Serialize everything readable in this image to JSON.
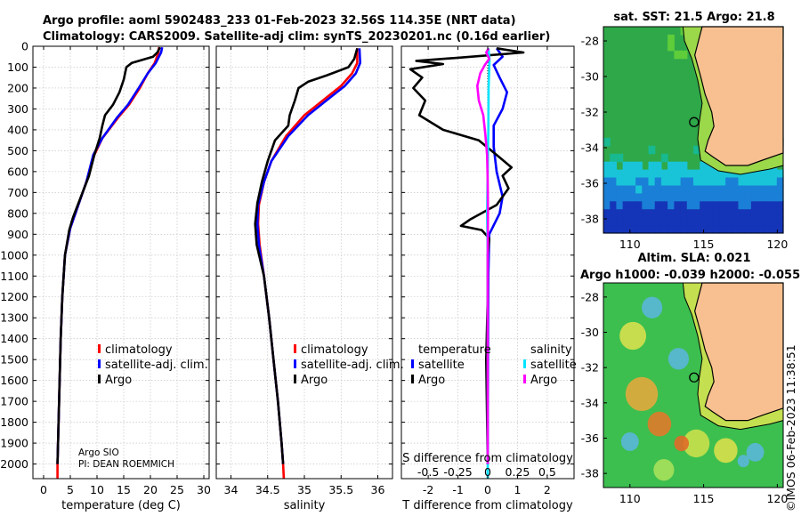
{
  "header": {
    "title_line1": "Argo profile: aoml 5902483_233 01-Feb-2023 32.56S 114.35E (NRT data)",
    "title_line2": "Climatology: CARS2009. Satellite-adj clim: synTS_20230201.nc (0.16d earlier)"
  },
  "colors": {
    "climatology": "#ff0000",
    "satellite_adj": "#0000ff",
    "argo": "#000000",
    "sal_satellite": "#00e5ff",
    "sal_argo": "#ff00ff",
    "land": "#f8c090",
    "coast": "#000000"
  },
  "chart_data": [
    {
      "type": "line",
      "name": "temperature",
      "xlabel": "temperature (deg C)",
      "xlim": [
        -2,
        31
      ],
      "xticks": [
        0,
        5,
        10,
        15,
        20,
        25,
        30
      ],
      "ylim": [
        2070,
        0
      ],
      "yticks": [
        0,
        100,
        200,
        300,
        400,
        500,
        600,
        700,
        800,
        900,
        1000,
        1100,
        1200,
        1300,
        1400,
        1500,
        1600,
        1700,
        1800,
        1900,
        2000
      ],
      "legend": [
        "climatology",
        "satellite-adj. clim.",
        "Argo"
      ],
      "annotation": [
        "Argo SIO",
        "PI: DEAN ROEMMICH"
      ],
      "series": [
        {
          "name": "climatology",
          "color": "#ff0000",
          "points": [
            [
              21.6,
              5
            ],
            [
              21.5,
              30
            ],
            [
              20.8,
              80
            ],
            [
              19.5,
              130
            ],
            [
              18,
              200
            ],
            [
              16,
              280
            ],
            [
              14,
              340
            ],
            [
              11,
              440
            ],
            [
              9.5,
              520
            ],
            [
              8,
              650
            ],
            [
              6.5,
              760
            ],
            [
              5,
              870
            ],
            [
              4,
              1000
            ],
            [
              3.5,
              1200
            ],
            [
              3.2,
              1400
            ],
            [
              3,
              1600
            ],
            [
              2.8,
              1800
            ],
            [
              2.6,
              2000
            ],
            [
              2.6,
              2070
            ]
          ]
        },
        {
          "name": "satellite-adj. clim.",
          "color": "#0000ff",
          "points": [
            [
              22.2,
              5
            ],
            [
              22,
              30
            ],
            [
              21,
              80
            ],
            [
              19.5,
              130
            ],
            [
              17.8,
              200
            ],
            [
              15.8,
              280
            ],
            [
              13.8,
              340
            ],
            [
              11,
              440
            ],
            [
              9.3,
              520
            ],
            [
              8,
              650
            ],
            [
              6.5,
              760
            ],
            [
              5,
              870
            ],
            [
              4,
              1000
            ],
            [
              3.5,
              1200
            ],
            [
              3.2,
              1400
            ],
            [
              3,
              1600
            ],
            [
              2.8,
              1800
            ],
            [
              2.6,
              2000
            ]
          ]
        },
        {
          "name": "Argo",
          "color": "#000000",
          "points": [
            [
              21.8,
              5
            ],
            [
              21.3,
              30
            ],
            [
              20.5,
              50
            ],
            [
              18.5,
              65
            ],
            [
              16.5,
              80
            ],
            [
              15.5,
              100
            ],
            [
              15,
              160
            ],
            [
              14.2,
              220
            ],
            [
              13,
              280
            ],
            [
              11.5,
              330
            ],
            [
              11,
              380
            ],
            [
              10.5,
              440
            ],
            [
              9.5,
              520
            ],
            [
              8.5,
              620
            ],
            [
              7,
              720
            ],
            [
              5.5,
              820
            ],
            [
              4.8,
              880
            ],
            [
              4,
              1000
            ],
            [
              3.5,
              1200
            ],
            [
              3.2,
              1400
            ],
            [
              3,
              1600
            ],
            [
              2.8,
              1800
            ],
            [
              2.6,
              2000
            ]
          ]
        }
      ]
    },
    {
      "type": "line",
      "name": "salinity",
      "xlabel": "salinity",
      "xlim": [
        33.8,
        36.2
      ],
      "xticks": [
        34,
        34.5,
        35,
        35.5,
        36
      ],
      "ylim": [
        2070,
        0
      ],
      "legend": [
        "climatology",
        "satellite-adj. clim.",
        "Argo"
      ],
      "series": [
        {
          "name": "climatology",
          "color": "#ff0000",
          "points": [
            [
              35.72,
              10
            ],
            [
              35.72,
              80
            ],
            [
              35.65,
              130
            ],
            [
              35.5,
              190
            ],
            [
              35.25,
              260
            ],
            [
              35.0,
              330
            ],
            [
              34.75,
              430
            ],
            [
              34.55,
              550
            ],
            [
              34.45,
              650
            ],
            [
              34.38,
              760
            ],
            [
              34.37,
              850
            ],
            [
              34.39,
              950
            ],
            [
              34.45,
              1100
            ],
            [
              34.52,
              1300
            ],
            [
              34.58,
              1500
            ],
            [
              34.64,
              1700
            ],
            [
              34.69,
              1900
            ],
            [
              34.71,
              2000
            ],
            [
              34.72,
              2070
            ]
          ]
        },
        {
          "name": "satellite-adj. clim.",
          "color": "#0000ff",
          "points": [
            [
              35.75,
              10
            ],
            [
              35.76,
              80
            ],
            [
              35.7,
              130
            ],
            [
              35.55,
              190
            ],
            [
              35.3,
              260
            ],
            [
              35.05,
              330
            ],
            [
              34.78,
              430
            ],
            [
              34.55,
              550
            ],
            [
              34.45,
              650
            ],
            [
              34.37,
              760
            ],
            [
              34.36,
              850
            ],
            [
              34.38,
              950
            ],
            [
              34.45,
              1100
            ],
            [
              34.52,
              1300
            ],
            [
              34.58,
              1500
            ],
            [
              34.64,
              1700
            ],
            [
              34.69,
              1900
            ],
            [
              34.71,
              2000
            ]
          ]
        },
        {
          "name": "Argo",
          "color": "#000000",
          "points": [
            [
              35.72,
              10
            ],
            [
              35.68,
              60
            ],
            [
              35.6,
              100
            ],
            [
              35.3,
              140
            ],
            [
              35.05,
              170
            ],
            [
              34.92,
              200
            ],
            [
              34.87,
              260
            ],
            [
              34.8,
              330
            ],
            [
              34.78,
              380
            ],
            [
              34.6,
              450
            ],
            [
              34.5,
              550
            ],
            [
              34.42,
              650
            ],
            [
              34.36,
              750
            ],
            [
              34.33,
              850
            ],
            [
              34.35,
              950
            ],
            [
              34.45,
              1100
            ],
            [
              34.52,
              1300
            ],
            [
              34.58,
              1500
            ],
            [
              34.64,
              1700
            ],
            [
              34.69,
              1900
            ],
            [
              34.71,
              2000
            ]
          ]
        }
      ]
    },
    {
      "type": "line",
      "name": "difference",
      "xlabel": "T difference from climatology",
      "xlabel2": "S difference from climatology",
      "xlim": [
        -2.9,
        2.9
      ],
      "xticks": [
        -2,
        -1,
        0,
        1,
        2
      ],
      "xticks_labels": [
        "-2",
        "-1",
        "0",
        "1",
        "2"
      ],
      "xticks2": [
        -0.5,
        -0.25,
        0,
        0.25,
        0.5
      ],
      "xticks2_labels": [
        "-0.5",
        "-0.25",
        "0",
        "0.25",
        "0.5"
      ],
      "ylim": [
        2070,
        0
      ],
      "legend_temperature": {
        "title": "temperature",
        "items": [
          "satellite",
          "Argo"
        ]
      },
      "legend_salinity": {
        "title": "salinity",
        "items": [
          "satellite",
          "Argo"
        ]
      },
      "series": [
        {
          "name": "temperature satellite",
          "color": "#0000ff",
          "points": [
            [
              0.3,
              10
            ],
            [
              0.5,
              50
            ],
            [
              0.2,
              90
            ],
            [
              0.4,
              150
            ],
            [
              0.65,
              220
            ],
            [
              0.5,
              300
            ],
            [
              0.2,
              380
            ],
            [
              0.2,
              480
            ],
            [
              0.3,
              600
            ],
            [
              0.5,
              720
            ],
            [
              0.4,
              800
            ],
            [
              0.05,
              900
            ],
            [
              0.02,
              1100
            ],
            [
              0,
              2000
            ]
          ]
        },
        {
          "name": "temperature Argo",
          "color": "#000000",
          "points": [
            [
              0.3,
              10
            ],
            [
              1.2,
              30
            ],
            [
              -1,
              55
            ],
            [
              -2.4,
              70
            ],
            [
              -1.5,
              85
            ],
            [
              -2.6,
              110
            ],
            [
              -2.2,
              150
            ],
            [
              -2.5,
              200
            ],
            [
              -2.1,
              260
            ],
            [
              -2.3,
              330
            ],
            [
              -1.5,
              400
            ],
            [
              -0.3,
              450
            ],
            [
              0.3,
              520
            ],
            [
              0.8,
              580
            ],
            [
              0.5,
              620
            ],
            [
              0.7,
              680
            ],
            [
              0.3,
              760
            ],
            [
              -0.6,
              830
            ],
            [
              -0.9,
              860
            ],
            [
              -0.2,
              880
            ],
            [
              0.05,
              920
            ],
            [
              0,
              1000
            ],
            [
              0,
              1200
            ],
            [
              -0.05,
              1500
            ],
            [
              0,
              2000
            ]
          ]
        },
        {
          "name": "salinity satellite",
          "color": "#00e5ff",
          "points": [
            [
              0.02,
              10
            ],
            [
              0.06,
              60
            ],
            [
              0.03,
              200
            ],
            [
              0.02,
              400
            ],
            [
              0.0,
              600
            ],
            [
              -0.02,
              800
            ],
            [
              0.0,
              1000
            ],
            [
              0.0,
              1500
            ],
            [
              0.0,
              2000
            ],
            [
              0.0,
              2070
            ]
          ]
        },
        {
          "name": "salinity Argo",
          "color": "#ff00ff",
          "points": [
            [
              0.03,
              10
            ],
            [
              -0.05,
              30
            ],
            [
              0.05,
              60
            ],
            [
              -0.1,
              90
            ],
            [
              -0.25,
              130
            ],
            [
              -0.35,
              190
            ],
            [
              -0.3,
              260
            ],
            [
              -0.15,
              330
            ],
            [
              -0.08,
              420
            ],
            [
              -0.02,
              520
            ],
            [
              0.0,
              650
            ],
            [
              0.01,
              800
            ],
            [
              0.0,
              1000
            ],
            [
              0.0,
              1500
            ],
            [
              0.0,
              2000
            ]
          ]
        }
      ]
    }
  ],
  "maps": {
    "sst": {
      "title": "sat. SST: 21.5 Argo: 21.8",
      "lon_ticks": [
        "110",
        "115",
        "120"
      ],
      "lat_ticks": [
        "-28",
        "-30",
        "-32",
        "-34",
        "-36",
        "-38"
      ],
      "argo_lon": 114.35,
      "argo_lat": -32.56
    },
    "sla": {
      "title1": "Altim. SLA: 0.021",
      "title2": "Argo h1000: -0.039 h2000: -0.055",
      "lon_ticks": [
        "110",
        "115",
        "120"
      ],
      "lat_ticks": [
        "-28",
        "-30",
        "-32",
        "-34",
        "-36",
        "-38"
      ],
      "argo_lon": 114.35,
      "argo_lat": -32.56
    }
  },
  "watermark": "©IMOS 06-Feb-2023 11:38:51"
}
